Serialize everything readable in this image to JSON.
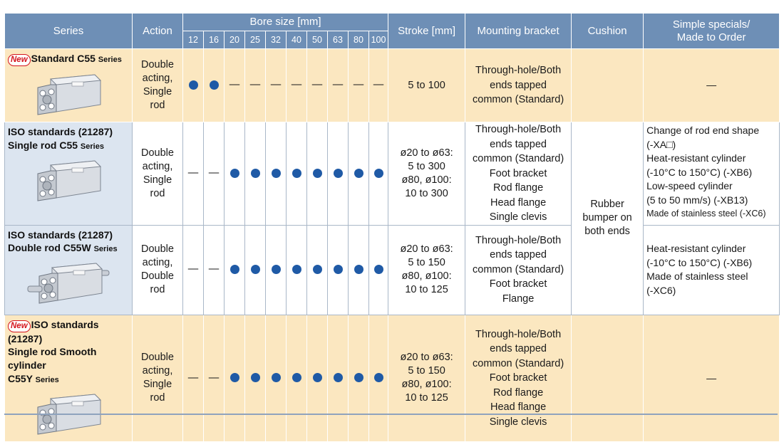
{
  "header": {
    "series": "Series",
    "action": "Action",
    "bore_size": "Bore size [mm]",
    "bores": [
      "12",
      "16",
      "20",
      "25",
      "32",
      "40",
      "50",
      "63",
      "80",
      "100"
    ],
    "stroke": "Stroke [mm]",
    "mounting": "Mounting bracket",
    "cushion": "Cushion",
    "specials": "Simple specials/\nMade to Order"
  },
  "new_badge": "New",
  "rows": [
    {
      "badge": true,
      "title_lines": [
        "Standard C55"
      ],
      "title_suffix": "Series",
      "action_lines": [
        "Double",
        "acting,",
        "Single",
        "rod"
      ],
      "bores": [
        "dot",
        "dot",
        "—",
        "—",
        "—",
        "—",
        "—",
        "—",
        "—",
        "—"
      ],
      "stroke_lines": [
        "5 to 100"
      ],
      "mounting_lines": [
        "Through-hole/Both",
        "ends tapped",
        "common (Standard)"
      ],
      "specials": "—"
    },
    {
      "badge": false,
      "title_lines": [
        "ISO standards (21287)",
        "Single rod C55"
      ],
      "title_suffix": "Series",
      "action_lines": [
        "Double",
        "acting,",
        "Single",
        "rod"
      ],
      "bores": [
        "—",
        "—",
        "dot",
        "dot",
        "dot",
        "dot",
        "dot",
        "dot",
        "dot",
        "dot"
      ],
      "stroke_lines": [
        "ø20 to ø63:",
        "5 to 300",
        "ø80, ø100:",
        "10 to 300"
      ],
      "mounting_lines": [
        "Through-hole/Both",
        "ends tapped",
        "common (Standard)",
        "Foot bracket",
        "Rod flange",
        "Head flange",
        "Single clevis"
      ],
      "specials_lines": [
        "Change of rod end shape",
        "(-XA□)",
        "Heat-resistant cylinder",
        "(-10°C to 150°C) (-XB6)",
        "Low-speed cylinder",
        "(5 to 50 mm/s) (-XB13)"
      ],
      "specials_small": "Made of stainless steel (-XC6)"
    },
    {
      "badge": false,
      "title_lines": [
        "ISO standards (21287)",
        "Double rod C55W"
      ],
      "title_suffix": "Series",
      "action_lines": [
        "Double",
        "acting,",
        "Double",
        "rod"
      ],
      "bores": [
        "—",
        "—",
        "dot",
        "dot",
        "dot",
        "dot",
        "dot",
        "dot",
        "dot",
        "dot"
      ],
      "stroke_lines": [
        "ø20 to ø63:",
        "5 to 150",
        "ø80, ø100:",
        "10 to 125"
      ],
      "mounting_lines": [
        "Through-hole/Both",
        "ends tapped",
        "common (Standard)",
        "Foot bracket",
        "Flange"
      ],
      "specials_lines": [
        "Heat-resistant cylinder",
        "(-10°C to 150°C) (-XB6)",
        "Made of stainless steel",
        "(-XC6)"
      ]
    },
    {
      "badge": true,
      "title_lines": [
        "ISO standards (21287)",
        "Single rod Smooth cylinder",
        "C55Y"
      ],
      "title_suffix": "Series",
      "action_lines": [
        "Double",
        "acting,",
        "Single",
        "rod"
      ],
      "bores": [
        "—",
        "—",
        "dot",
        "dot",
        "dot",
        "dot",
        "dot",
        "dot",
        "dot",
        "dot"
      ],
      "stroke_lines": [
        "ø20 to ø63:",
        "5 to 150",
        "ø80, ø100:",
        "10 to 125"
      ],
      "mounting_lines": [
        "Through-hole/Both",
        "ends tapped",
        "common (Standard)",
        "Foot bracket",
        "Rod flange",
        "Head flange",
        "Single clevis"
      ],
      "specials": "—"
    }
  ],
  "cushion_shared_lines": [
    "Rubber",
    "bumper on",
    "both ends"
  ],
  "colors": {
    "header": "#6e8fb6",
    "cream": "#fbe7c0",
    "series_blue": "#dce5f0",
    "dot": "#1f5aa6",
    "new": "#d4141c"
  }
}
